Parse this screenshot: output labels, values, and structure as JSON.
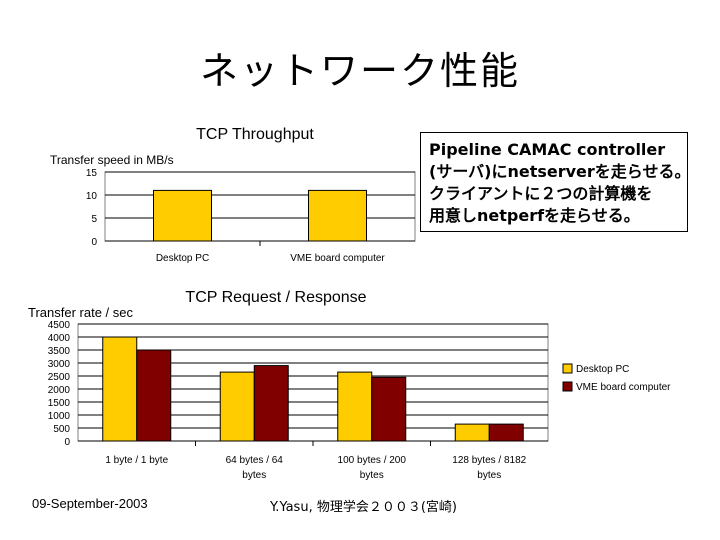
{
  "slide": {
    "title": "ネットワーク性能",
    "note_lines": [
      "Pipeline CAMAC controller",
      "(サーバ)にnetserverを走らせる。",
      "クライアントに２つの計算機を",
      "用意しnetperfを走らせる。"
    ],
    "footer_date": "09-September-2003",
    "footer_author": "Y.Yasu, 物理学会２００３(宮崎)"
  },
  "colors": {
    "desktop": "#FFCC00",
    "vme": "#800000",
    "grid": "#000000"
  },
  "chart_data": [
    {
      "type": "bar",
      "title": "TCP Throughput",
      "ylabel": "Transfer speed in MB/s",
      "xlabel": "",
      "categories": [
        "Desktop PC",
        "VME board computer"
      ],
      "series": [
        {
          "values": [
            11,
            11
          ],
          "color": "#FFCC00"
        }
      ],
      "ylim": [
        0,
        15
      ],
      "yticks": [
        0,
        5,
        10,
        15
      ],
      "grid": true,
      "legend": "none"
    },
    {
      "type": "bar",
      "title": "TCP Request / Response",
      "ylabel": "Transfer rate / sec",
      "xlabel": "",
      "categories": [
        "1 byte / 1 byte",
        "64 bytes / 64 bytes",
        "100 bytes / 200 bytes",
        "128 bytes / 8182 bytes"
      ],
      "series": [
        {
          "name": "Desktop PC",
          "values": [
            4000,
            2650,
            2650,
            650
          ],
          "color": "#FFCC00"
        },
        {
          "name": "VME board computer",
          "values": [
            3500,
            2900,
            2450,
            650
          ],
          "color": "#800000"
        }
      ],
      "ylim": [
        0,
        4500
      ],
      "yticks": [
        0,
        500,
        1000,
        1500,
        2000,
        2500,
        3000,
        3500,
        4000,
        4500
      ],
      "grid": true,
      "legend": "right"
    }
  ]
}
